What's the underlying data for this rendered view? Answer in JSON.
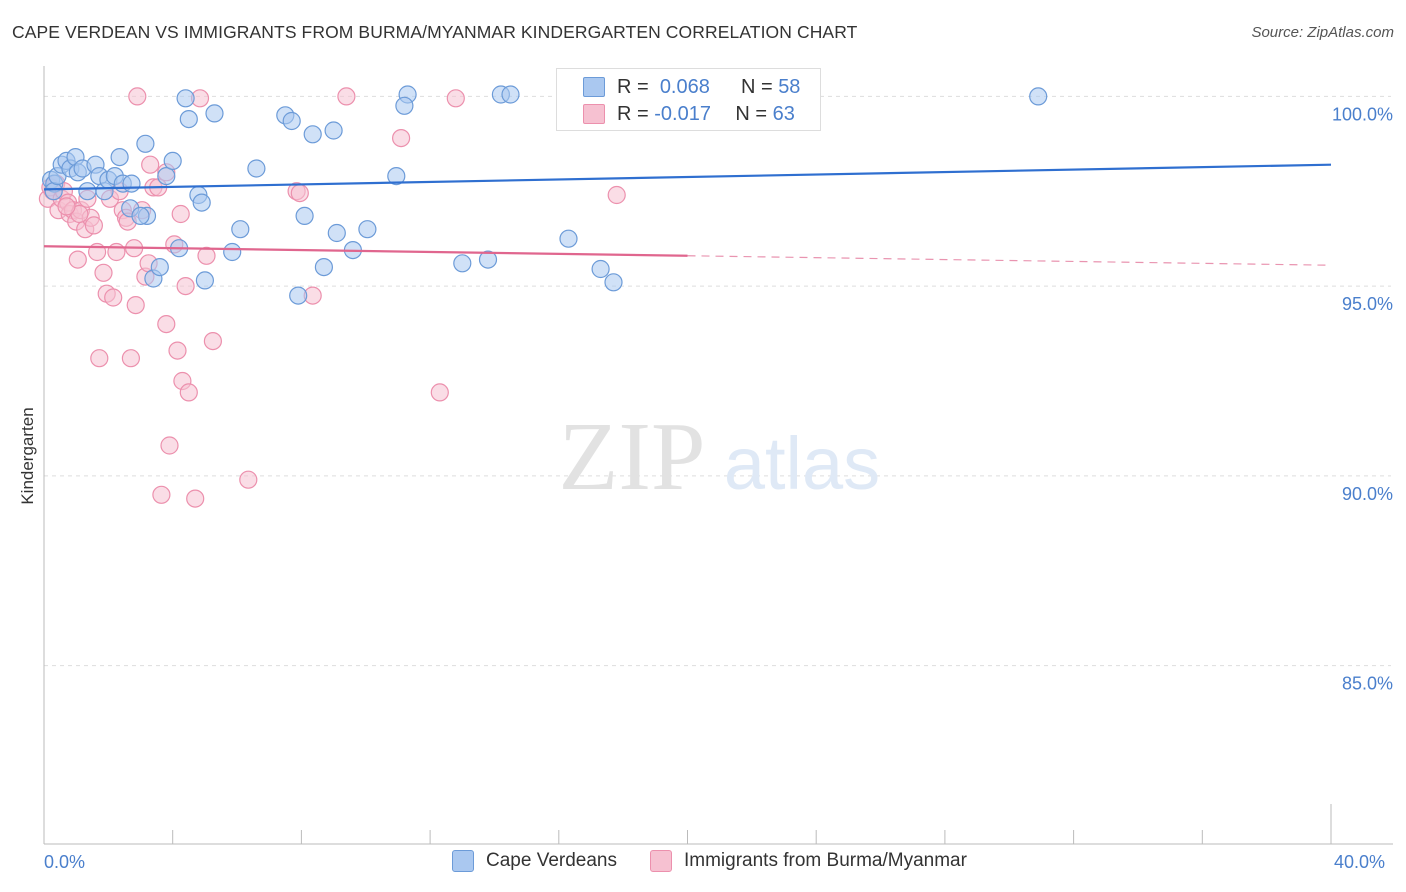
{
  "title": "CAPE VERDEAN VS IMMIGRANTS FROM BURMA/MYANMAR KINDERGARTEN CORRELATION CHART",
  "source": "Source: ZipAtlas.com",
  "watermark": {
    "zip": "ZIP",
    "atlas": "atlas"
  },
  "legend": {
    "rows": [
      {
        "r_label": "R =",
        "r_value": "0.068",
        "n_label": "N =",
        "n_value": "58"
      },
      {
        "r_label": "R =",
        "r_value": "-0.017",
        "n_label": "N =",
        "n_value": "63"
      }
    ]
  },
  "colors": {
    "blue_fill": "#aac8f0",
    "blue_stroke": "#6c9bd8",
    "blue_line": "#2f6fd0",
    "pink_fill": "#f6c1d1",
    "pink_stroke": "#ec90ad",
    "pink_line": "#e0668e",
    "grid": "#dddddd",
    "tick_label": "#4a7fcc"
  },
  "chart_data": {
    "type": "scatter",
    "title": "CAPE VERDEAN VS IMMIGRANTS FROM BURMA/MYANMAR KINDERGARTEN CORRELATION CHART",
    "xlabel": "",
    "ylabel": "Kindergarten",
    "xlim": [
      0.0,
      40.0
    ],
    "ylim": [
      80.3,
      100.8
    ],
    "x_tick_labels": [
      "0.0%",
      "40.0%"
    ],
    "y_ticks": [
      {
        "value": 100,
        "label": "100.0%"
      },
      {
        "value": 95,
        "label": "95.0%"
      },
      {
        "value": 90,
        "label": "90.0%"
      },
      {
        "value": 85,
        "label": "85.0%"
      }
    ],
    "x_minor_ticks": [
      4,
      8,
      12,
      16,
      20,
      24,
      28,
      32,
      36
    ],
    "series": [
      {
        "name": "Cape Verdeans",
        "color": "#aac8f0",
        "stroke": "#6c9bd8",
        "r": 0.068,
        "n": 58,
        "trend": {
          "x": [
            0.0,
            40.0
          ],
          "y": [
            97.55,
            98.2
          ],
          "dashed_from": null
        },
        "points": [
          [
            0.22,
            97.8
          ],
          [
            0.32,
            97.7
          ],
          [
            0.3,
            97.5
          ],
          [
            0.42,
            97.9
          ],
          [
            0.55,
            98.2
          ],
          [
            0.7,
            98.3
          ],
          [
            0.82,
            98.1
          ],
          [
            0.98,
            98.4
          ],
          [
            1.05,
            98.0
          ],
          [
            1.2,
            98.1
          ],
          [
            1.35,
            97.5
          ],
          [
            1.6,
            98.2
          ],
          [
            1.72,
            97.9
          ],
          [
            1.88,
            97.5
          ],
          [
            2.0,
            97.8
          ],
          [
            2.2,
            97.9
          ],
          [
            2.35,
            98.4
          ],
          [
            2.45,
            97.7
          ],
          [
            2.72,
            97.7
          ],
          [
            2.68,
            97.05
          ],
          [
            3.2,
            96.85
          ],
          [
            3.15,
            98.75
          ],
          [
            3.0,
            96.85
          ],
          [
            3.4,
            95.2
          ],
          [
            3.8,
            97.9
          ],
          [
            3.6,
            95.5
          ],
          [
            4.0,
            98.3
          ],
          [
            4.2,
            96.0
          ],
          [
            4.4,
            99.95
          ],
          [
            4.5,
            99.4
          ],
          [
            4.8,
            97.4
          ],
          [
            4.9,
            97.2
          ],
          [
            5.0,
            95.15
          ],
          [
            5.3,
            99.55
          ],
          [
            5.85,
            95.9
          ],
          [
            6.1,
            96.5
          ],
          [
            6.6,
            98.1
          ],
          [
            7.5,
            99.5
          ],
          [
            7.7,
            99.35
          ],
          [
            7.9,
            94.75
          ],
          [
            8.1,
            96.85
          ],
          [
            8.35,
            99.0
          ],
          [
            8.7,
            95.5
          ],
          [
            9.0,
            99.1
          ],
          [
            9.1,
            96.4
          ],
          [
            9.6,
            95.95
          ],
          [
            10.05,
            96.5
          ],
          [
            10.95,
            97.9
          ],
          [
            11.3,
            100.05
          ],
          [
            11.2,
            99.75
          ],
          [
            13.0,
            95.6
          ],
          [
            13.8,
            95.7
          ],
          [
            14.2,
            100.05
          ],
          [
            14.5,
            100.05
          ],
          [
            16.3,
            96.25
          ],
          [
            17.3,
            95.45
          ],
          [
            17.7,
            95.1
          ],
          [
            30.9,
            100.0
          ]
        ]
      },
      {
        "name": "Immigrants from Burma/Myanmar",
        "color": "#f6c1d1",
        "stroke": "#ec90ad",
        "r": -0.017,
        "n": 63,
        "trend": {
          "x": [
            0.0,
            40.0
          ],
          "y": [
            96.05,
            95.55
          ],
          "dashed_from": 20.0
        },
        "points": [
          [
            0.12,
            97.3
          ],
          [
            0.2,
            97.6
          ],
          [
            0.28,
            97.5
          ],
          [
            0.38,
            97.7
          ],
          [
            0.45,
            97.0
          ],
          [
            0.55,
            97.3
          ],
          [
            0.62,
            97.5
          ],
          [
            0.75,
            97.2
          ],
          [
            0.8,
            96.9
          ],
          [
            0.9,
            97.0
          ],
          [
            1.0,
            96.7
          ],
          [
            1.05,
            95.7
          ],
          [
            1.15,
            97.0
          ],
          [
            1.28,
            96.5
          ],
          [
            1.35,
            97.3
          ],
          [
            1.45,
            96.8
          ],
          [
            1.55,
            96.6
          ],
          [
            1.65,
            95.9
          ],
          [
            1.72,
            93.1
          ],
          [
            1.85,
            95.35
          ],
          [
            1.95,
            94.8
          ],
          [
            2.05,
            97.3
          ],
          [
            2.15,
            94.7
          ],
          [
            2.25,
            95.9
          ],
          [
            2.35,
            97.5
          ],
          [
            2.45,
            97.0
          ],
          [
            2.55,
            96.8
          ],
          [
            2.7,
            93.1
          ],
          [
            2.8,
            96.0
          ],
          [
            2.85,
            94.5
          ],
          [
            3.05,
            97.0
          ],
          [
            3.15,
            95.25
          ],
          [
            3.25,
            95.6
          ],
          [
            3.3,
            98.2
          ],
          [
            3.4,
            97.6
          ],
          [
            3.55,
            97.6
          ],
          [
            3.65,
            89.5
          ],
          [
            3.8,
            98.0
          ],
          [
            3.8,
            94.0
          ],
          [
            3.9,
            90.8
          ],
          [
            4.05,
            96.1
          ],
          [
            4.15,
            93.3
          ],
          [
            4.25,
            96.9
          ],
          [
            4.3,
            92.5
          ],
          [
            4.4,
            95.0
          ],
          [
            4.5,
            92.2
          ],
          [
            4.7,
            89.4
          ],
          [
            4.85,
            99.95
          ],
          [
            5.05,
            95.8
          ],
          [
            5.25,
            93.55
          ],
          [
            6.35,
            89.9
          ],
          [
            7.85,
            97.5
          ],
          [
            7.95,
            97.45
          ],
          [
            8.35,
            94.75
          ],
          [
            9.4,
            100.0
          ],
          [
            11.1,
            98.9
          ],
          [
            12.3,
            92.2
          ],
          [
            12.8,
            99.95
          ],
          [
            17.8,
            97.4
          ],
          [
            2.9,
            100.0
          ],
          [
            1.1,
            96.9
          ],
          [
            2.6,
            96.7
          ],
          [
            0.7,
            97.1
          ]
        ]
      }
    ],
    "legend_position": "top-center"
  }
}
